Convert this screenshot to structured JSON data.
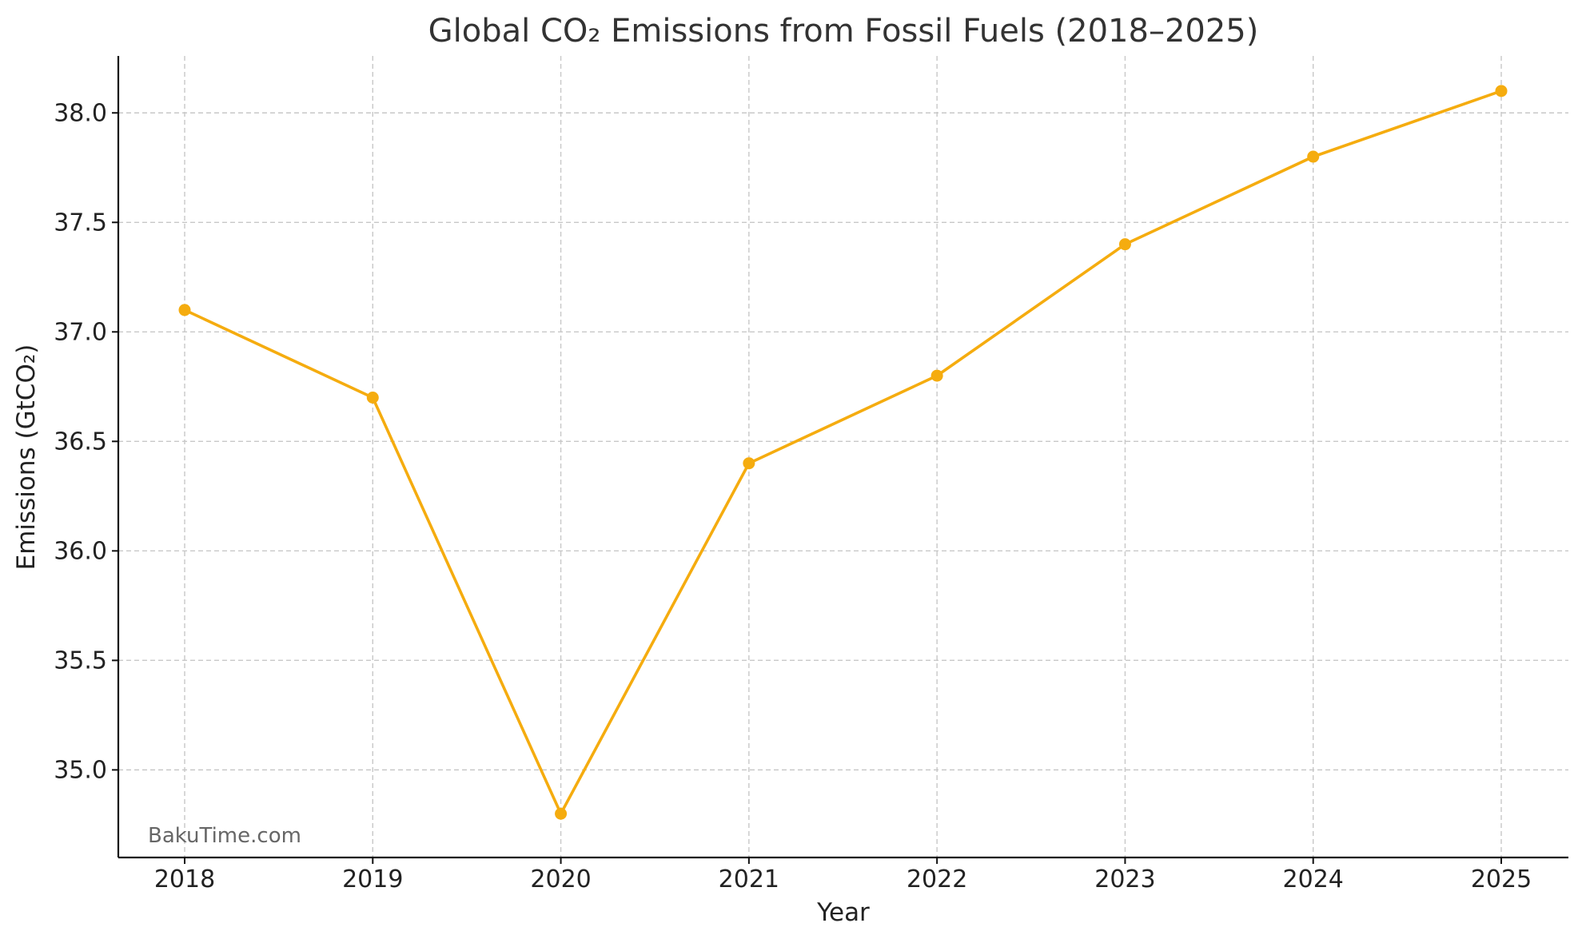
{
  "chart_data": {
    "type": "line",
    "title": "Global CO₂ Emissions from Fossil Fuels (2018–2025)",
    "xlabel": "Year",
    "ylabel": "Emissions (GtCO₂)",
    "x": [
      "2018",
      "2019",
      "2020",
      "2021",
      "2022",
      "2023",
      "2024",
      "2025"
    ],
    "series": [
      {
        "values": [
          37.1,
          36.7,
          34.8,
          36.4,
          36.8,
          37.4,
          37.8,
          38.1
        ],
        "color": "#F5AC0F",
        "marker": "circle"
      }
    ],
    "ylim": [
      34.6,
      38.26
    ],
    "yticks": [
      "35.0",
      "35.5",
      "36.0",
      "36.5",
      "37.0",
      "37.5",
      "38.0"
    ],
    "grid": true,
    "grid_style": "dashed",
    "legend": "none",
    "watermark": "BakuTime.com"
  }
}
